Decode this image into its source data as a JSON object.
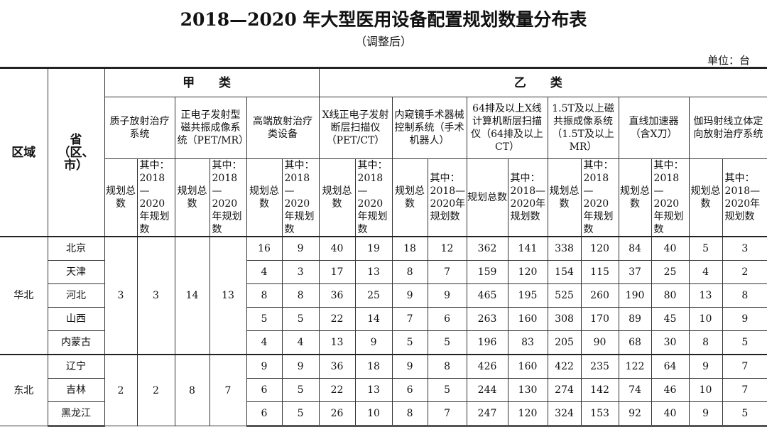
{
  "title": "2018—2020 年大型医用设备配置规划数量分布表",
  "subtitle": "（调整后）",
  "unit": "单位：台",
  "headers": {
    "region": "区域",
    "province": "省（区、市）",
    "class_a": "甲 类",
    "class_b": "乙 类",
    "total": "规划总数",
    "of_which": "其中：2018—2020年规划数",
    "devices": [
      "质子放射治疗系统",
      "正电子发射型磁共振成像系统（PET/MR）",
      "高端放射治疗类设备",
      "X线正电子发射断层扫描仪（PET/CT）",
      "内窥镜手术器械控制系统（手术机器人）",
      "64排及以上X线计算机断层扫描仪（64排及以上CT）",
      "1.5T及以上磁共振成像系统（1.5T及以上 MR）",
      "直线加速器（含X刀）",
      "伽玛射线立体定向放射治疗系统"
    ]
  },
  "regions": [
    {
      "name": "华北",
      "merged": [
        "3",
        "3",
        "14",
        "13"
      ],
      "rows": [
        {
          "province": "北京",
          "values": [
            "16",
            "9",
            "40",
            "19",
            "18",
            "12",
            "362",
            "141",
            "338",
            "120",
            "84",
            "40",
            "5",
            "3"
          ]
        },
        {
          "province": "天津",
          "values": [
            "4",
            "3",
            "17",
            "13",
            "8",
            "7",
            "159",
            "120",
            "154",
            "115",
            "37",
            "25",
            "4",
            "2"
          ]
        },
        {
          "province": "河北",
          "values": [
            "8",
            "8",
            "36",
            "25",
            "9",
            "9",
            "465",
            "195",
            "525",
            "260",
            "190",
            "80",
            "13",
            "8"
          ]
        },
        {
          "province": "山西",
          "values": [
            "5",
            "5",
            "22",
            "14",
            "7",
            "6",
            "263",
            "160",
            "308",
            "170",
            "89",
            "45",
            "10",
            "9"
          ]
        },
        {
          "province": "内蒙古",
          "values": [
            "4",
            "4",
            "13",
            "9",
            "5",
            "5",
            "196",
            "83",
            "205",
            "90",
            "68",
            "30",
            "8",
            "5"
          ]
        }
      ]
    },
    {
      "name": "东北",
      "merged": [
        "2",
        "2",
        "8",
        "7"
      ],
      "rows": [
        {
          "province": "辽宁",
          "values": [
            "9",
            "9",
            "36",
            "18",
            "9",
            "8",
            "426",
            "160",
            "422",
            "235",
            "122",
            "64",
            "9",
            "7"
          ]
        },
        {
          "province": "吉林",
          "values": [
            "6",
            "5",
            "22",
            "13",
            "6",
            "5",
            "244",
            "130",
            "274",
            "142",
            "74",
            "46",
            "10",
            "7"
          ]
        },
        {
          "province": "黑龙江",
          "values": [
            "6",
            "5",
            "26",
            "10",
            "8",
            "7",
            "247",
            "120",
            "324",
            "153",
            "92",
            "40",
            "9",
            "5"
          ]
        }
      ]
    }
  ]
}
